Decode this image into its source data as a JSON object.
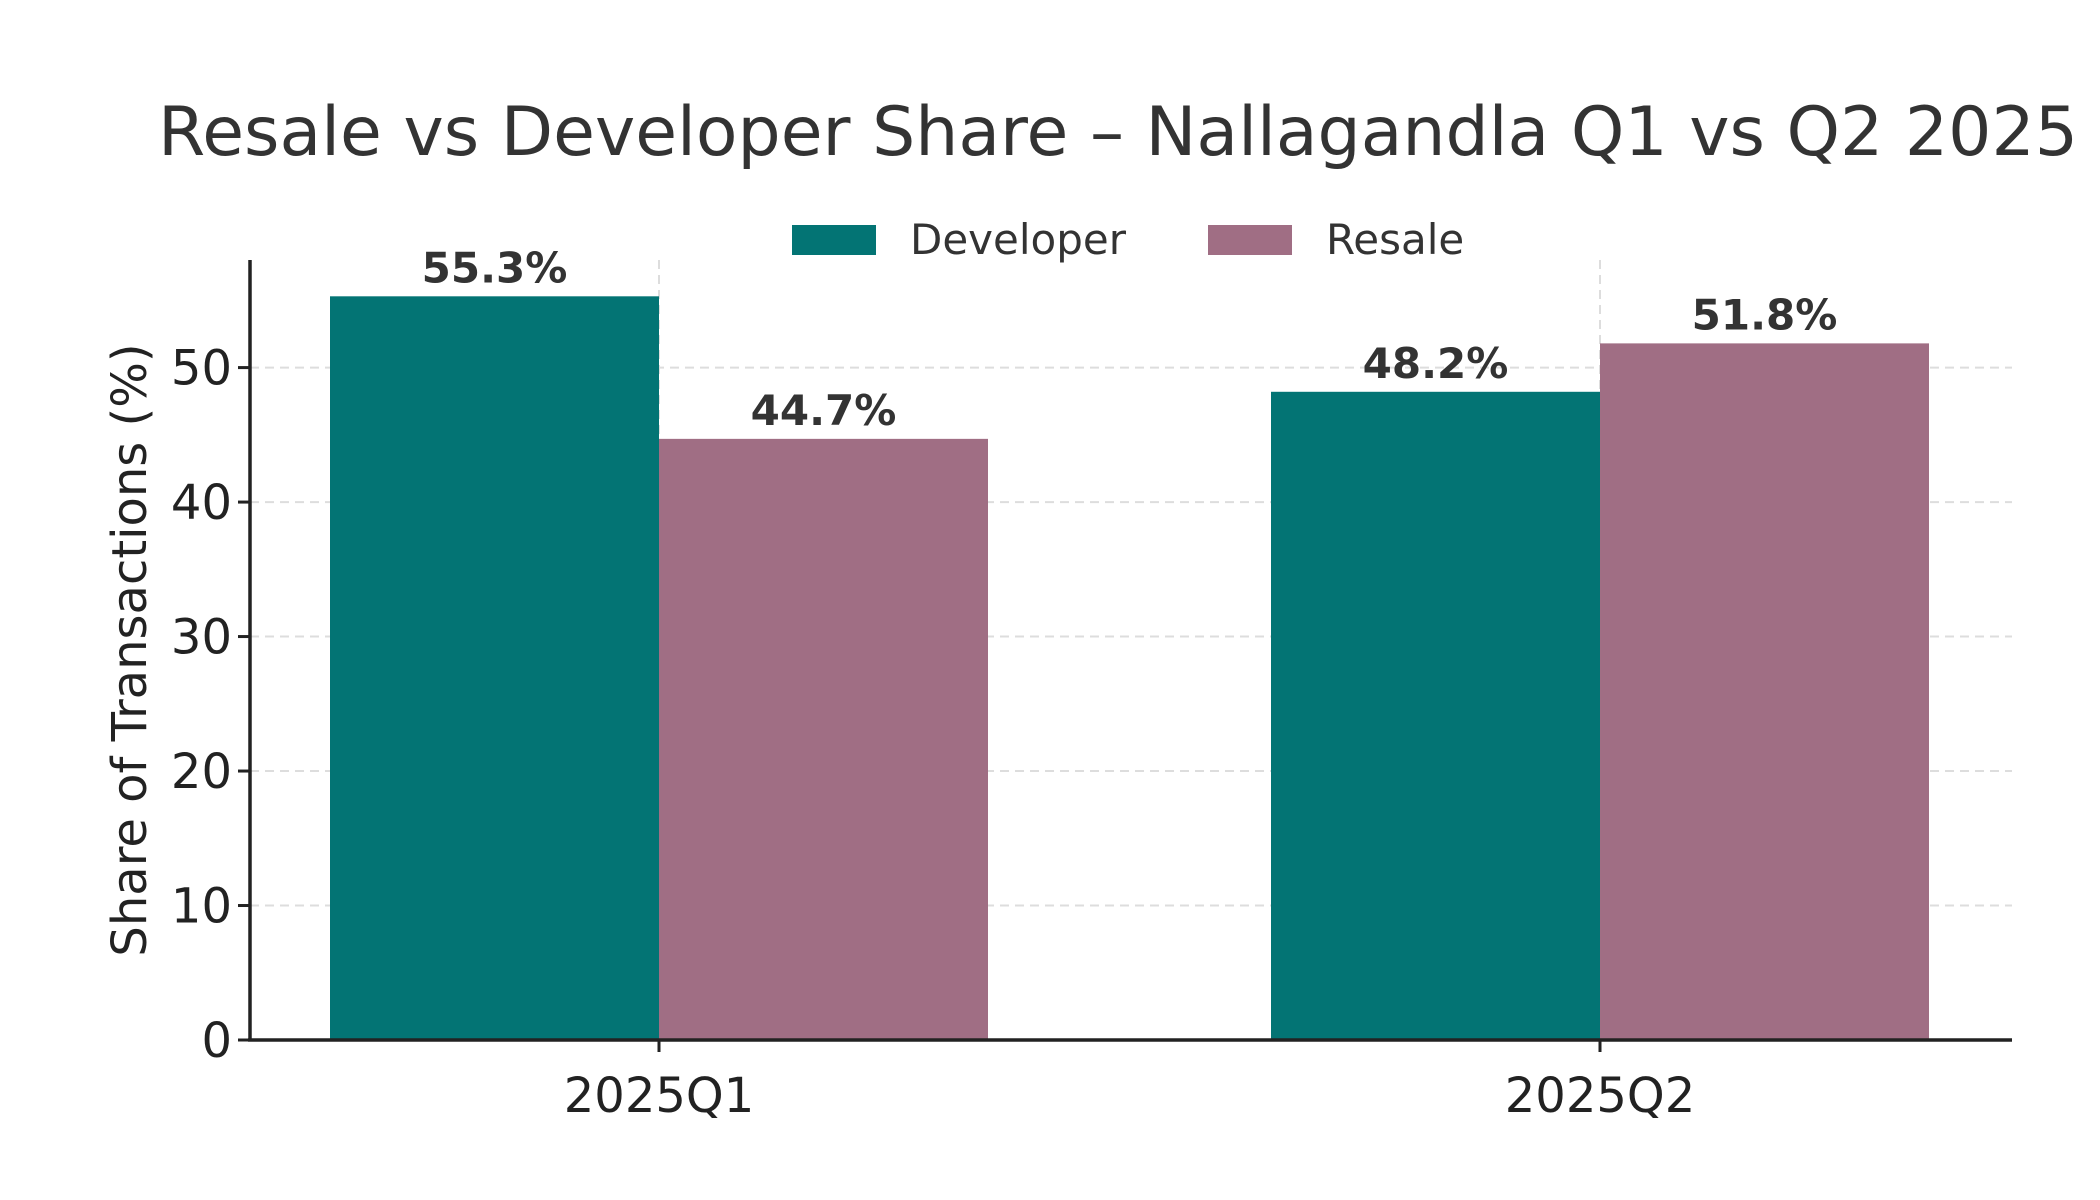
{
  "chart_data": {
    "type": "bar",
    "title": "Resale vs Developer Share – Nallagandla Q1 vs Q2 2025",
    "xlabel": "",
    "ylabel": "Share of Transactions (%)",
    "categories": [
      "2025Q1",
      "2025Q2"
    ],
    "series": [
      {
        "name": "Developer",
        "values": [
          55.3,
          48.2
        ],
        "labels": [
          "55.3%",
          "48.2%"
        ],
        "color": "#037474"
      },
      {
        "name": "Resale",
        "values": [
          44.7,
          51.8
        ],
        "labels": [
          "44.7%",
          "51.8%"
        ],
        "color": "#a06e84"
      }
    ],
    "ylim": [
      0,
      58
    ],
    "yticks": [
      0,
      10,
      20,
      30,
      40,
      50
    ],
    "grid": true,
    "legend": "top-center"
  }
}
